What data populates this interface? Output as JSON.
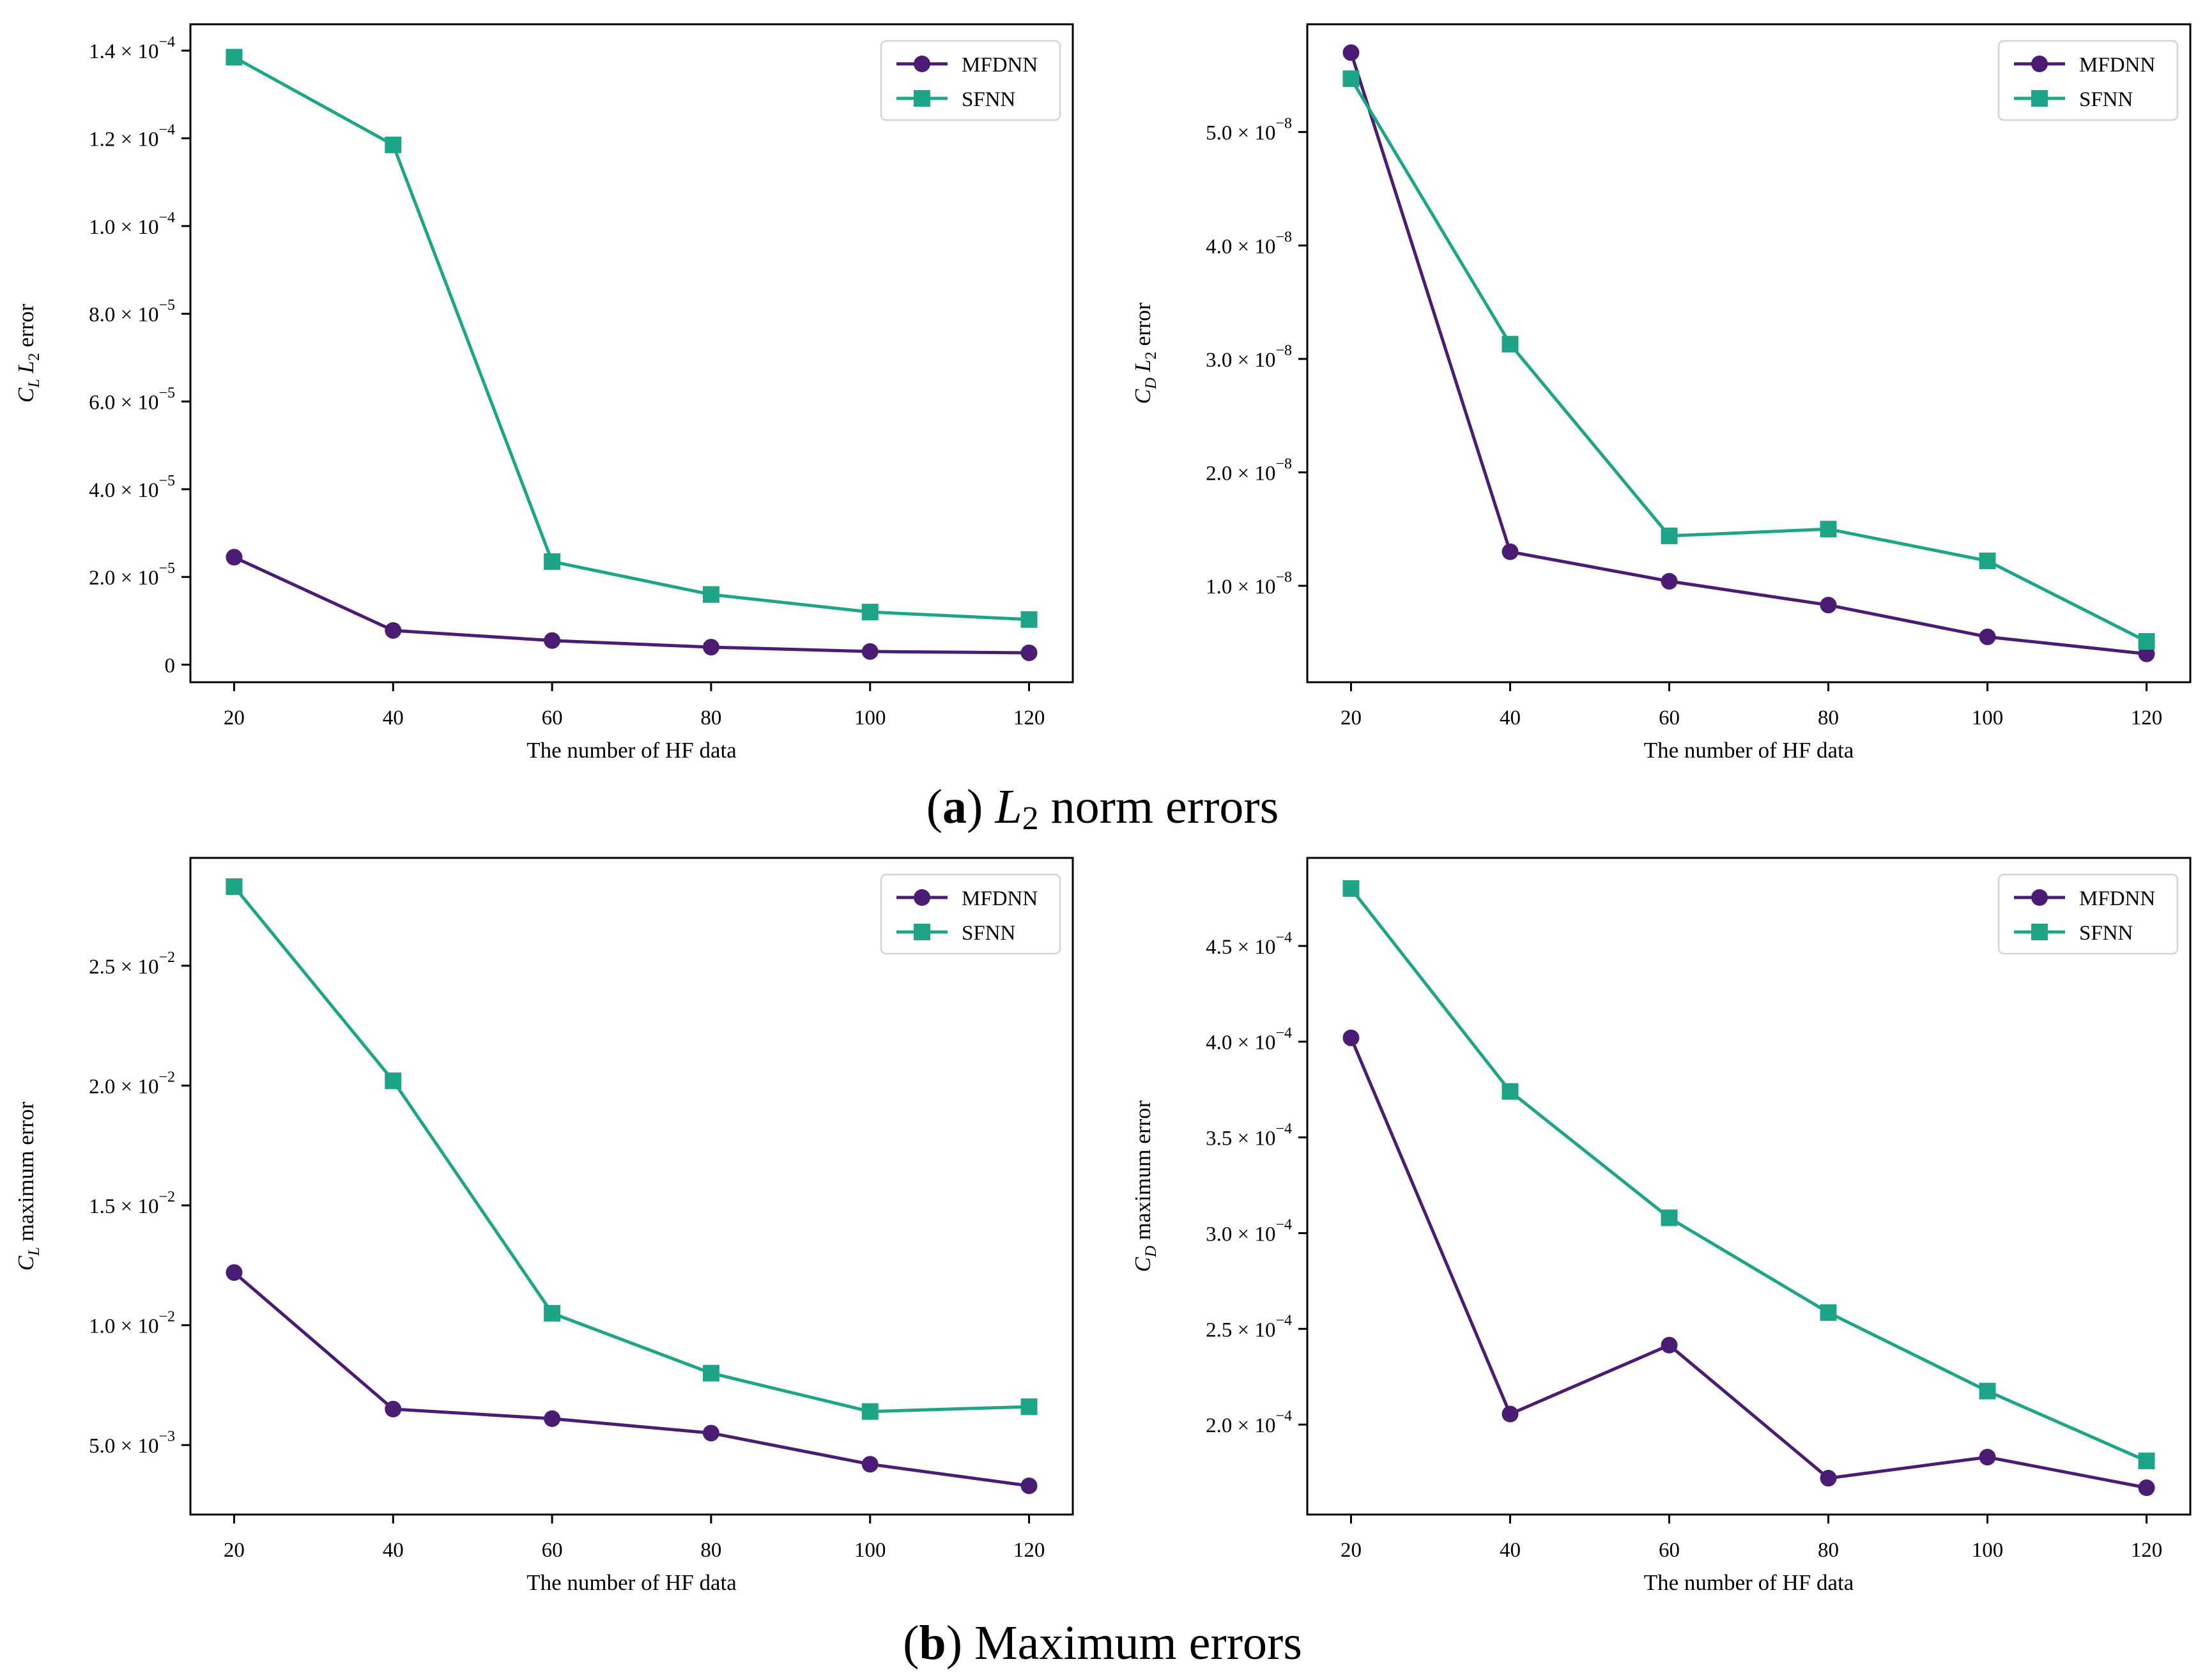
{
  "captions": {
    "a": {
      "letter": "a",
      "math": "L",
      "sub": "2",
      "text": " norm errors"
    },
    "b": {
      "letter": "b",
      "text": " Maximum errors"
    }
  },
  "chart_data": [
    {
      "type": "line",
      "panel": "a-left",
      "title": "",
      "xlabel": "The number of HF data",
      "ylabel": {
        "sym": "C",
        "sub": "L",
        "mid_sym": "L",
        "mid_sub": "2",
        "rest": "error"
      },
      "x": [
        20,
        40,
        60,
        80,
        100,
        120
      ],
      "xticks": [
        20,
        40,
        60,
        80,
        100,
        120
      ],
      "xlim": [
        14.5,
        125.5
      ],
      "ylim": [
        -4e-06,
        0.000146
      ],
      "yticks": [
        {
          "v": 0,
          "m": "0",
          "e": ""
        },
        {
          "v": 2e-05,
          "m": "2.0",
          "e": "−5"
        },
        {
          "v": 4e-05,
          "m": "4.0",
          "e": "−5"
        },
        {
          "v": 6e-05,
          "m": "6.0",
          "e": "−5"
        },
        {
          "v": 8e-05,
          "m": "8.0",
          "e": "−5"
        },
        {
          "v": 0.0001,
          "m": "1.0",
          "e": "−4"
        },
        {
          "v": 0.00012,
          "m": "1.2",
          "e": "−4"
        },
        {
          "v": 0.00014,
          "m": "1.4",
          "e": "−4"
        }
      ],
      "legend": "top-right",
      "series": [
        {
          "name": "MFDNN",
          "color": "#4b1c73",
          "marker": "circle",
          "values": [
            2.45e-05,
            7.8e-06,
            5.5e-06,
            4e-06,
            3e-06,
            2.7e-06
          ]
        },
        {
          "name": "SFNN",
          "color": "#1ea587",
          "marker": "square",
          "values": [
            0.0001385,
            0.0001185,
            2.35e-05,
            1.6e-05,
            1.2e-05,
            1.03e-05
          ]
        }
      ]
    },
    {
      "type": "line",
      "panel": "a-right",
      "title": "",
      "xlabel": "The number of HF data",
      "ylabel": {
        "sym": "C",
        "sub": "D",
        "mid_sym": "L",
        "mid_sub": "2",
        "rest": "error"
      },
      "x": [
        20,
        40,
        60,
        80,
        100,
        120
      ],
      "xticks": [
        20,
        40,
        60,
        80,
        100,
        120
      ],
      "xlim": [
        14.5,
        125.5
      ],
      "ylim": [
        1.5e-09,
        5.95e-08
      ],
      "yticks": [
        {
          "v": 1e-08,
          "m": "1.0",
          "e": "−8"
        },
        {
          "v": 2e-08,
          "m": "2.0",
          "e": "−8"
        },
        {
          "v": 3e-08,
          "m": "3.0",
          "e": "−8"
        },
        {
          "v": 4e-08,
          "m": "4.0",
          "e": "−8"
        },
        {
          "v": 5e-08,
          "m": "5.0",
          "e": "−8"
        }
      ],
      "legend": "top-right",
      "series": [
        {
          "name": "MFDNN",
          "color": "#4b1c73",
          "marker": "circle",
          "values": [
            5.7e-08,
            1.3e-08,
            1.04e-08,
            8.3e-09,
            5.5e-09,
            4e-09
          ]
        },
        {
          "name": "SFNN",
          "color": "#1ea587",
          "marker": "square",
          "values": [
            5.47e-08,
            3.13e-08,
            1.44e-08,
            1.5e-08,
            1.22e-08,
            5.1e-09
          ]
        }
      ]
    },
    {
      "type": "line",
      "panel": "b-left",
      "title": "",
      "xlabel": "The number of HF data",
      "ylabel": {
        "sym": "C",
        "sub": "L",
        "mid_sym": "",
        "mid_sub": "",
        "rest": "maximum error"
      },
      "x": [
        20,
        40,
        60,
        80,
        100,
        120
      ],
      "xticks": [
        20,
        40,
        60,
        80,
        100,
        120
      ],
      "xlim": [
        14.5,
        125.5
      ],
      "ylim": [
        0.0021,
        0.0295
      ],
      "yticks": [
        {
          "v": 0.005,
          "m": "5.0",
          "e": "−3"
        },
        {
          "v": 0.01,
          "m": "1.0",
          "e": "−2"
        },
        {
          "v": 0.015,
          "m": "1.5",
          "e": "−2"
        },
        {
          "v": 0.02,
          "m": "2.0",
          "e": "−2"
        },
        {
          "v": 0.025,
          "m": "2.5",
          "e": "−2"
        }
      ],
      "legend": "top-right",
      "series": [
        {
          "name": "MFDNN",
          "color": "#4b1c73",
          "marker": "circle",
          "values": [
            0.0122,
            0.0065,
            0.0061,
            0.0055,
            0.0042,
            0.0033
          ]
        },
        {
          "name": "SFNN",
          "color": "#1ea587",
          "marker": "square",
          "values": [
            0.0283,
            0.0202,
            0.0105,
            0.008,
            0.0064,
            0.0066
          ]
        }
      ]
    },
    {
      "type": "line",
      "panel": "b-right",
      "title": "",
      "xlabel": "The number of HF data",
      "ylabel": {
        "sym": "C",
        "sub": "D",
        "mid_sym": "",
        "mid_sub": "",
        "rest": "maximum error"
      },
      "x": [
        20,
        40,
        60,
        80,
        100,
        120
      ],
      "xticks": [
        20,
        40,
        60,
        80,
        100,
        120
      ],
      "xlim": [
        14.5,
        125.5
      ],
      "ylim": [
        0.000153,
        0.000496
      ],
      "yticks": [
        {
          "v": 0.0002,
          "m": "2.0",
          "e": "−4"
        },
        {
          "v": 0.00025,
          "m": "2.5",
          "e": "−4"
        },
        {
          "v": 0.0003,
          "m": "3.0",
          "e": "−4"
        },
        {
          "v": 0.00035,
          "m": "3.5",
          "e": "−4"
        },
        {
          "v": 0.0004,
          "m": "4.0",
          "e": "−4"
        },
        {
          "v": 0.00045,
          "m": "4.5",
          "e": "−4"
        }
      ],
      "legend": "top-right",
      "series": [
        {
          "name": "MFDNN",
          "color": "#4b1c73",
          "marker": "circle",
          "values": [
            0.000402,
            0.0002055,
            0.0002415,
            0.000172,
            0.000183,
            0.000167
          ]
        },
        {
          "name": "SFNN",
          "color": "#1ea587",
          "marker": "square",
          "values": [
            0.00048,
            0.000374,
            0.000308,
            0.0002585,
            0.0002175,
            0.000181
          ]
        }
      ]
    }
  ]
}
